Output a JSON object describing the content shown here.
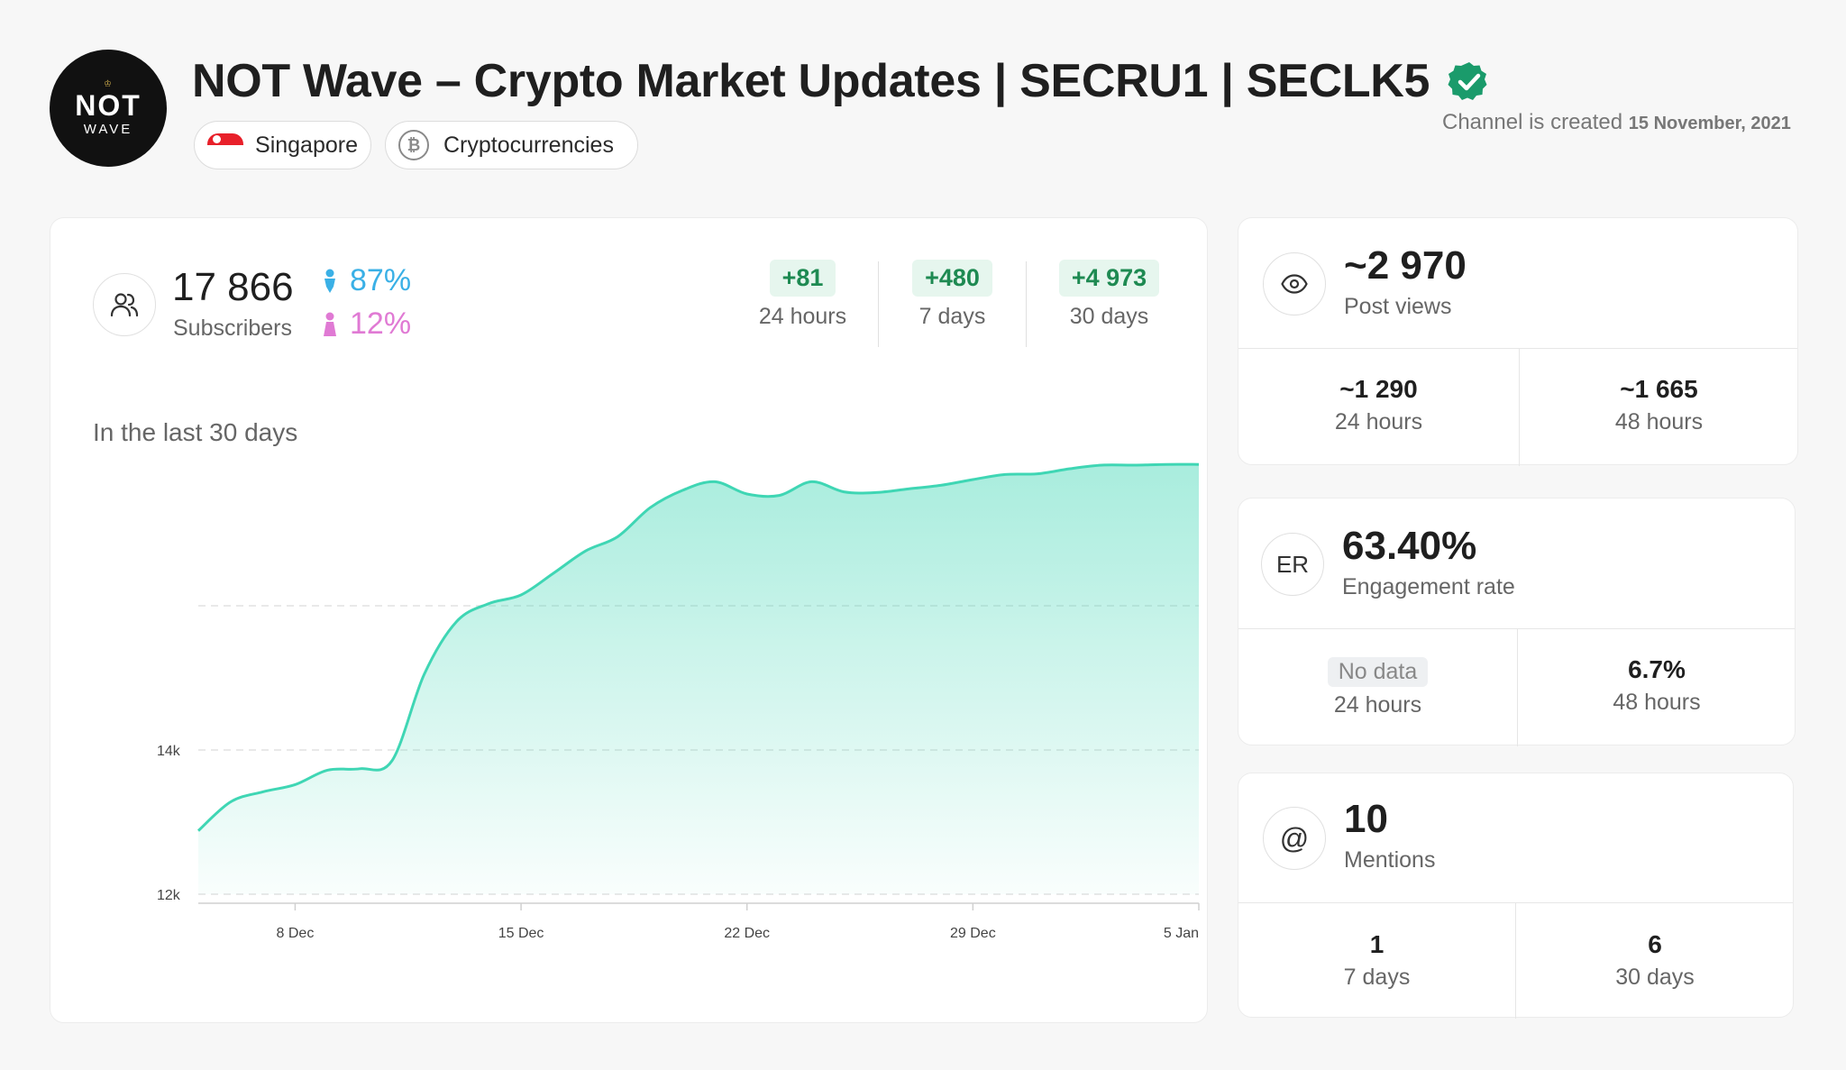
{
  "header": {
    "avatar": {
      "top": "♔",
      "main": "NOT",
      "sub": "WAVE"
    },
    "title": "NOT Wave – Crypto Market Updates | SECRU1 | SECLK5",
    "chips": {
      "country": "Singapore",
      "category": "Cryptocurrencies"
    },
    "created_prefix": "Channel is created",
    "created_date": "15 November, 2021"
  },
  "subscribers": {
    "count": "17 866",
    "label": "Subscribers",
    "male": "87%",
    "female": "12%",
    "deltas": [
      {
        "value": "+81",
        "label": "24 hours"
      },
      {
        "value": "+480",
        "label": "7 days"
      },
      {
        "value": "+4 973",
        "label": "30 days"
      }
    ]
  },
  "chart_caption": "In the last 30 days",
  "chart_data": {
    "type": "area",
    "title": "",
    "xlabel": "",
    "ylabel": "",
    "x_ticks": [
      "8 Dec",
      "15 Dec",
      "22 Dec",
      "29 Dec",
      "5 Jan"
    ],
    "y_ticks": [
      "12k",
      "14k"
    ],
    "ylim": [
      12000,
      18000
    ],
    "grid": true,
    "color": "#3fd6b4",
    "x": [
      "5 Dec",
      "6 Dec",
      "7 Dec",
      "8 Dec",
      "9 Dec",
      "10 Dec",
      "11 Dec",
      "12 Dec",
      "13 Dec",
      "14 Dec",
      "15 Dec",
      "16 Dec",
      "17 Dec",
      "18 Dec",
      "19 Dec",
      "20 Dec",
      "21 Dec",
      "22 Dec",
      "23 Dec",
      "24 Dec",
      "25 Dec",
      "26 Dec",
      "27 Dec",
      "28 Dec",
      "29 Dec",
      "30 Dec",
      "31 Dec",
      "1 Jan",
      "2 Jan",
      "3 Jan",
      "4 Jan",
      "5 Jan"
    ],
    "values": [
      12880,
      13280,
      13420,
      13520,
      13720,
      13740,
      13850,
      15050,
      15780,
      16030,
      16150,
      16450,
      16760,
      16960,
      17360,
      17600,
      17720,
      17550,
      17530,
      17720,
      17580,
      17570,
      17620,
      17670,
      17750,
      17820,
      17830,
      17900,
      17950,
      17950,
      17960,
      17960
    ]
  },
  "post_views": {
    "value": "~2 970",
    "label": "Post views",
    "cells": [
      {
        "value": "~1 290",
        "label": "24 hours"
      },
      {
        "value": "~1 665",
        "label": "48 hours"
      }
    ]
  },
  "engagement": {
    "icon_text": "ER",
    "value": "63.40%",
    "label": "Engagement rate",
    "cells": [
      {
        "value": "No data",
        "label": "24 hours"
      },
      {
        "value": "6.7%",
        "label": "48 hours"
      }
    ]
  },
  "mentions": {
    "value": "10",
    "label": "Mentions",
    "cells": [
      {
        "value": "1",
        "label": "7 days"
      },
      {
        "value": "6",
        "label": "30 days"
      }
    ]
  }
}
